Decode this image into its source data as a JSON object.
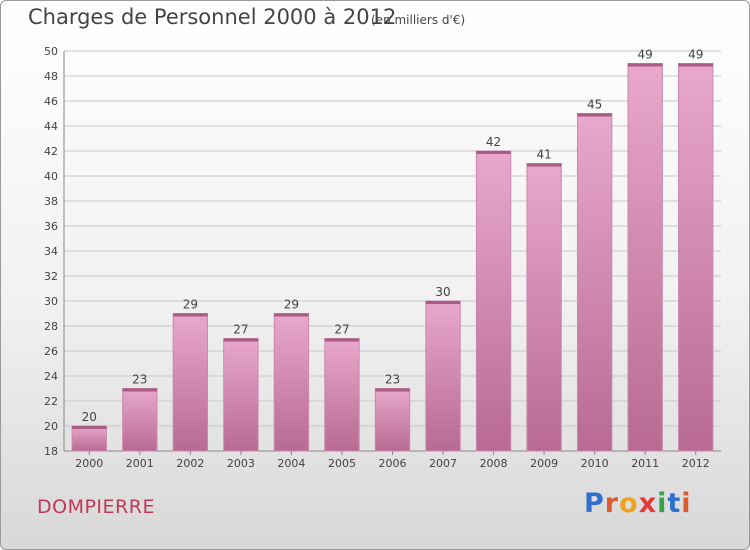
{
  "title": "Charges de Personnel 2000 à 2012",
  "subtitle": "(en milliers d'€)",
  "commune": "DOMPIERRE",
  "logo": {
    "letters": [
      "P",
      "r",
      "o",
      "x",
      "i",
      "t",
      "i"
    ],
    "colors": [
      "#2f6fcf",
      "#e0592a",
      "#f0a21f",
      "#e03a3a",
      "#35a14a",
      "#2f6fcf",
      "#e0592a"
    ]
  },
  "colors": {
    "bar": "#d58db5",
    "grid": "#c8c8c8",
    "text": "#444444",
    "accent": "#c0385a"
  },
  "chart_data": {
    "type": "bar",
    "categories": [
      "2000",
      "2001",
      "2002",
      "2003",
      "2004",
      "2005",
      "2006",
      "2007",
      "2008",
      "2009",
      "2010",
      "2011",
      "2012"
    ],
    "values": [
      20,
      23,
      29,
      27,
      29,
      27,
      23,
      30,
      42,
      41,
      45,
      49,
      49
    ],
    "ylim": [
      18,
      50
    ],
    "yticks": [
      18,
      20,
      22,
      24,
      26,
      28,
      30,
      32,
      34,
      36,
      38,
      40,
      42,
      44,
      46,
      48,
      50
    ],
    "grid": true,
    "title": "Charges de Personnel 2000 à 2012",
    "xlabel": "",
    "ylabel": ""
  }
}
